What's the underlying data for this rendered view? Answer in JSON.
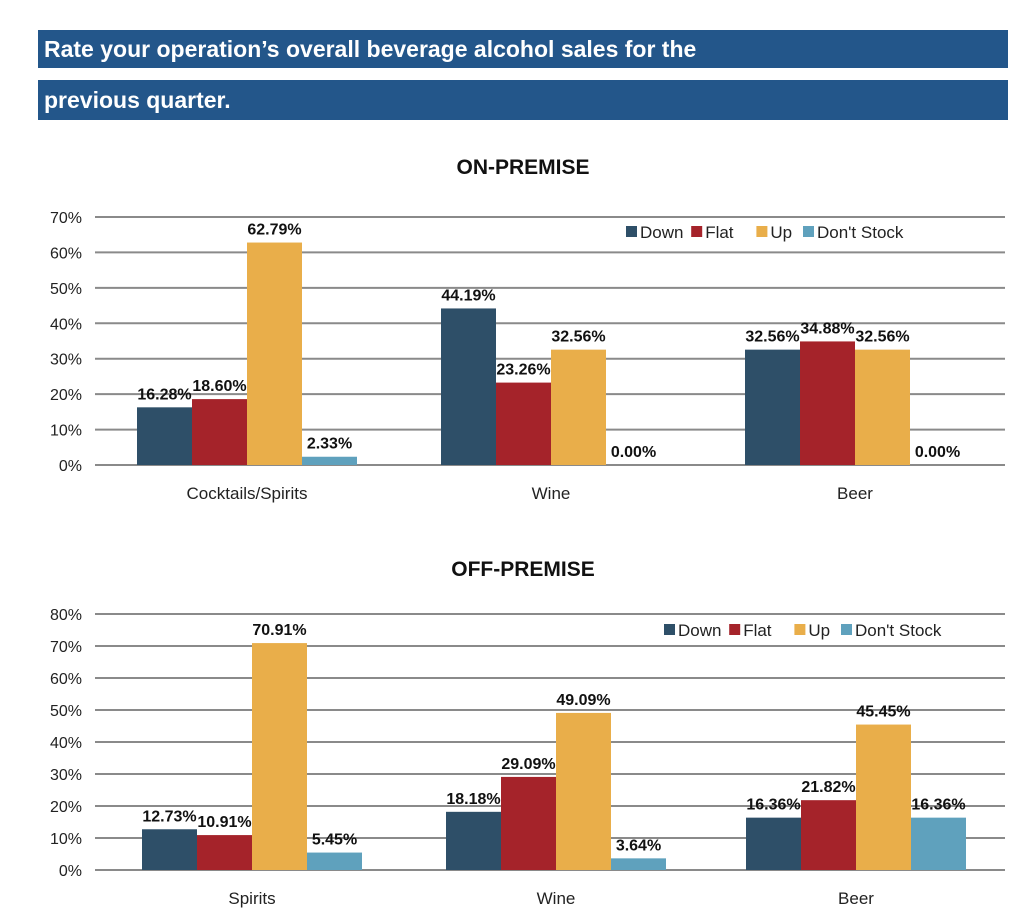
{
  "header": {
    "title_line1": "Rate your operation’s overall beverage alcohol sales for the",
    "title_line2": "previous quarter."
  },
  "chart_data": [
    {
      "type": "bar",
      "title": "ON-PREMISE",
      "categories": [
        "Cocktails/Spirits",
        "Wine",
        "Beer"
      ],
      "series": [
        {
          "name": "Down",
          "color": "#2e4f68",
          "values": [
            16.28,
            44.19,
            32.56
          ],
          "labels": [
            "16.28%",
            "44.19%",
            "32.56%"
          ]
        },
        {
          "name": "Flat",
          "color": "#a5232a",
          "values": [
            18.6,
            23.26,
            34.88
          ],
          "labels": [
            "18.60%",
            "23.26%",
            "34.88%"
          ]
        },
        {
          "name": "Up",
          "color": "#e9ae4a",
          "values": [
            62.79,
            32.56,
            32.56
          ],
          "labels": [
            "62.79%",
            "32.56%",
            "32.56%"
          ]
        },
        {
          "name": "Don't Stock",
          "color": "#5fa1bd",
          "values": [
            2.33,
            0.0,
            0.0
          ],
          "labels": [
            "2.33%",
            "0.00%",
            "0.00%"
          ]
        }
      ],
      "yticks": [
        "0%",
        "10%",
        "20%",
        "30%",
        "40%",
        "50%",
        "60%",
        "70%"
      ],
      "ylim": [
        0,
        70
      ],
      "grid": true,
      "legend": "top-right"
    },
    {
      "type": "bar",
      "title": "OFF-PREMISE",
      "categories": [
        "Spirits",
        "Wine",
        "Beer"
      ],
      "series": [
        {
          "name": "Down",
          "color": "#2e4f68",
          "values": [
            12.73,
            18.18,
            16.36
          ],
          "labels": [
            "12.73%",
            "18.18%",
            "16.36%"
          ]
        },
        {
          "name": "Flat",
          "color": "#a5232a",
          "values": [
            10.91,
            29.09,
            21.82
          ],
          "labels": [
            "10.91%",
            "29.09%",
            "21.82%"
          ]
        },
        {
          "name": "Up",
          "color": "#e9ae4a",
          "values": [
            70.91,
            49.09,
            45.45
          ],
          "labels": [
            "70.91%",
            "49.09%",
            "45.45%"
          ]
        },
        {
          "name": "Don't Stock",
          "color": "#5fa1bd",
          "values": [
            5.45,
            3.64,
            16.36
          ],
          "labels": [
            "5.45%",
            "3.64%",
            "16.36%"
          ]
        }
      ],
      "yticks": [
        "0%",
        "10%",
        "20%",
        "30%",
        "40%",
        "50%",
        "60%",
        "70%",
        "80%"
      ],
      "ylim": [
        0,
        80
      ],
      "grid": true,
      "legend": "top-right"
    }
  ]
}
